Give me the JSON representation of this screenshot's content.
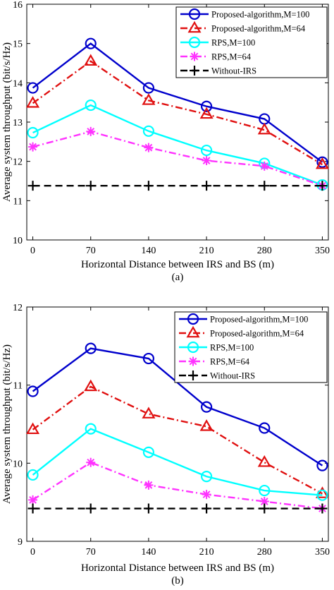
{
  "chart_data": [
    {
      "type": "line",
      "panel_label": "(a)",
      "xlabel": "Horizontal Distance between IRS and BS (m)",
      "ylabel": "Average system throughput (bit/s/Hz)",
      "x": [
        0,
        70,
        140,
        210,
        280,
        350
      ],
      "xticks": [
        "0",
        "70",
        "140",
        "210",
        "280",
        "350"
      ],
      "ylim": [
        10,
        16
      ],
      "yticks": [
        10,
        11,
        12,
        13,
        14,
        15,
        16
      ],
      "legend_position": "top-right",
      "series": [
        {
          "name": "Proposed-algorithm,M=100",
          "values": [
            13.87,
            15.0,
            13.87,
            13.4,
            13.08,
            11.98
          ],
          "color": "#0000cc",
          "dash": "solid",
          "marker": "circle"
        },
        {
          "name": "Proposed-algorithm,M=64",
          "values": [
            13.48,
            14.55,
            13.55,
            13.2,
            12.8,
            11.92
          ],
          "color": "#e01010",
          "dash": "dashdot",
          "marker": "triangle"
        },
        {
          "name": "RPS,M=100",
          "values": [
            12.73,
            13.43,
            12.77,
            12.28,
            11.95,
            11.4
          ],
          "color": "#00ffff",
          "dash": "solid",
          "marker": "circle"
        },
        {
          "name": "RPS,M=64",
          "values": [
            12.37,
            12.76,
            12.35,
            12.02,
            11.88,
            11.38
          ],
          "color": "#ff33ff",
          "dash": "dashdot",
          "marker": "star"
        },
        {
          "name": "Without-IRS",
          "values": [
            11.38,
            11.38,
            11.38,
            11.38,
            11.38,
            11.38
          ],
          "color": "#000000",
          "dash": "dashed",
          "marker": "plus"
        }
      ]
    },
    {
      "type": "line",
      "panel_label": "(b)",
      "xlabel": "Horizontal Distance between IRS and BS (m)",
      "ylabel": "Average system throughput (bit/s/Hz)",
      "x": [
        0,
        70,
        140,
        210,
        280,
        350
      ],
      "xticks": [
        "0",
        "70",
        "140",
        "210",
        "280",
        "350"
      ],
      "ylim": [
        9,
        12
      ],
      "yticks": [
        9,
        10,
        11,
        12
      ],
      "legend_position": "top-right",
      "series": [
        {
          "name": "Proposed-algorithm,M=100",
          "values": [
            10.92,
            11.47,
            11.34,
            10.72,
            10.45,
            9.97
          ],
          "color": "#0000cc",
          "dash": "solid",
          "marker": "circle"
        },
        {
          "name": "Proposed-algorithm,M=64",
          "values": [
            10.43,
            10.98,
            10.63,
            10.47,
            10.01,
            9.61
          ],
          "color": "#e01010",
          "dash": "dashdot",
          "marker": "triangle"
        },
        {
          "name": "RPS,M=100",
          "values": [
            9.85,
            10.44,
            10.14,
            9.83,
            9.65,
            9.59
          ],
          "color": "#00ffff",
          "dash": "solid",
          "marker": "circle"
        },
        {
          "name": "RPS,M=64",
          "values": [
            9.53,
            10.01,
            9.72,
            9.6,
            9.51,
            9.42
          ],
          "color": "#ff33ff",
          "dash": "dashdot",
          "marker": "star"
        },
        {
          "name": "Without-IRS",
          "values": [
            9.42,
            9.42,
            9.42,
            9.42,
            9.42,
            9.42
          ],
          "color": "#000000",
          "dash": "dashed",
          "marker": "plus"
        }
      ]
    }
  ]
}
